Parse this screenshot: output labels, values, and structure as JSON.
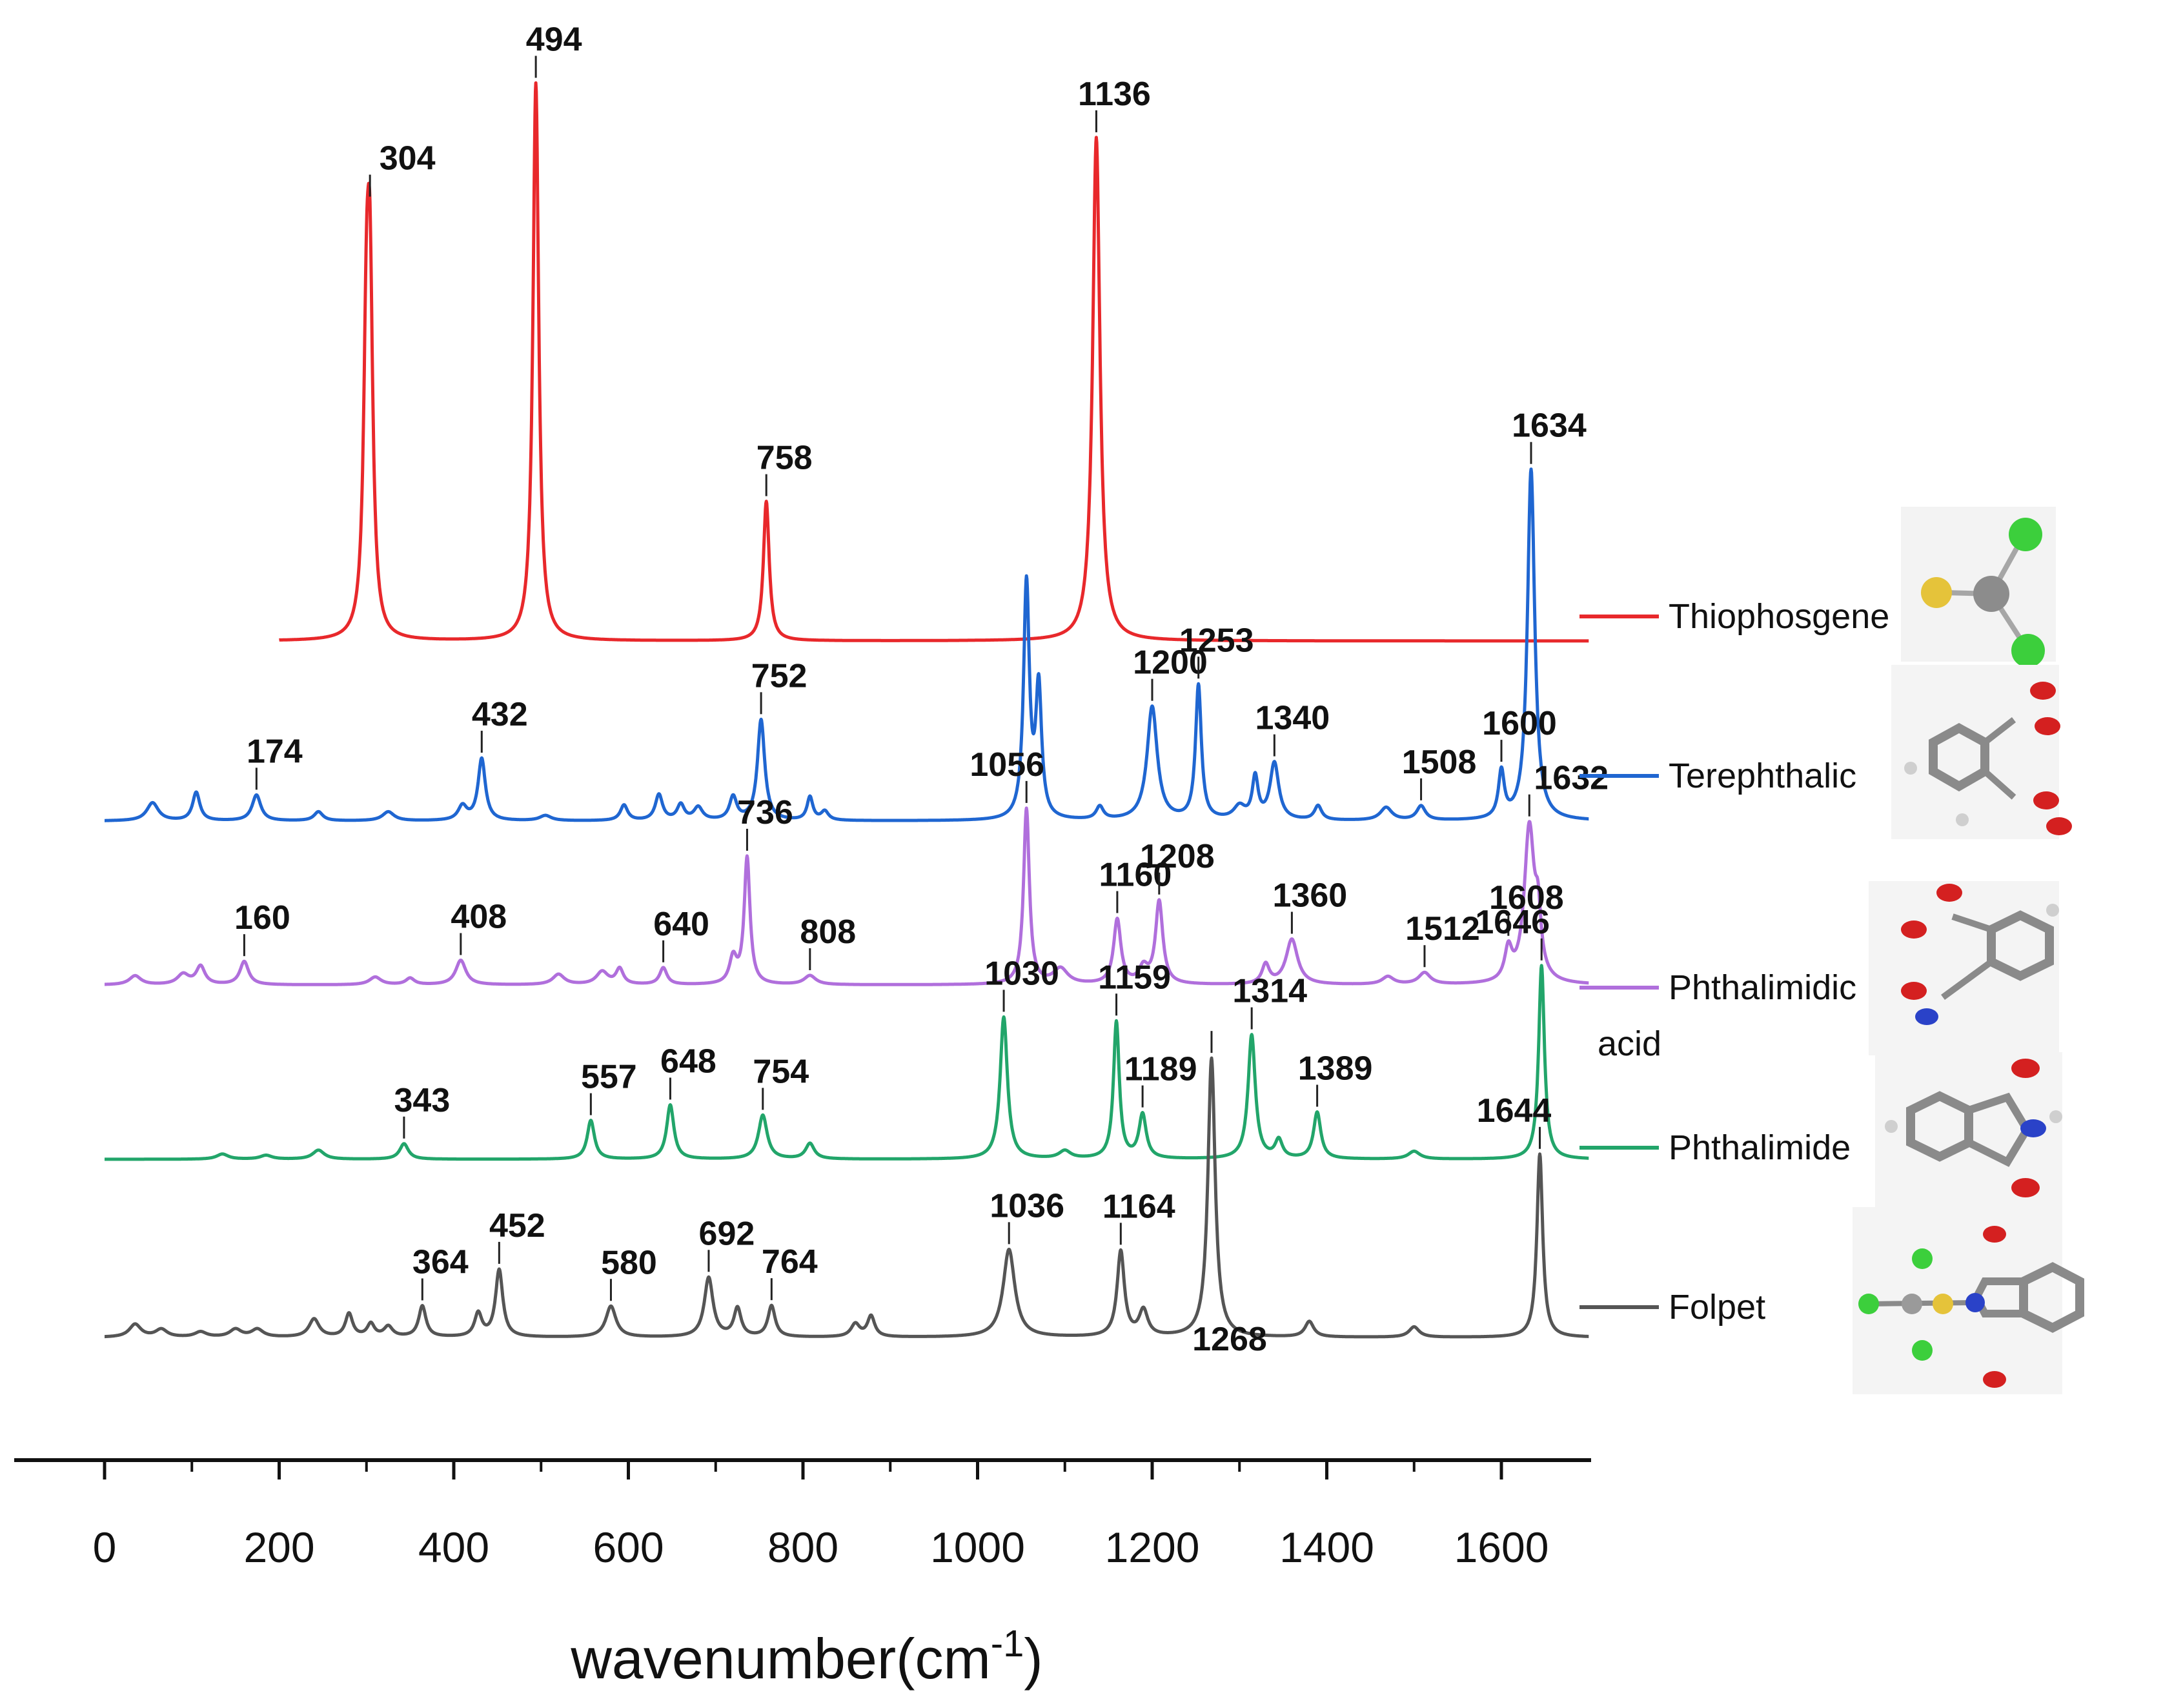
{
  "chart_data": {
    "type": "line",
    "title": "",
    "xlabel": "wavenumber(cm",
    "xlabel_sup": "-1",
    "xlabel_close": ")",
    "ylabel": "",
    "xlim": [
      -100,
      1700
    ],
    "x_ticks": [
      0,
      200,
      400,
      600,
      800,
      1000,
      1200,
      1400,
      1600
    ],
    "x_tick_labels": [
      "0",
      "200",
      "400",
      "600",
      "800",
      "1000",
      "1200",
      "1400",
      "1600"
    ],
    "stacked": true,
    "legend_position": "right",
    "series": [
      {
        "name": "Thiophosgene",
        "color": "#e8282b",
        "x_range": [
          200,
          1700
        ],
        "baseline": 0,
        "peaks": [
          [
            300,
            200,
            4
          ],
          [
            304,
            240,
            4
          ],
          [
            494,
            432,
            4
          ],
          [
            758,
            108,
            4
          ],
          [
            1136,
            390,
            5
          ]
        ],
        "labels": [
          [
            "304",
            304
          ],
          [
            "494",
            494
          ],
          [
            "758",
            758
          ],
          [
            "1136",
            1136
          ]
        ]
      },
      {
        "name": "Terephthalic",
        "color": "#1f66d1",
        "x_range": [
          0,
          1700
        ],
        "baseline": 0,
        "peaks": [
          [
            55,
            14,
            8
          ],
          [
            105,
            22,
            5
          ],
          [
            174,
            20,
            6
          ],
          [
            245,
            7,
            6
          ],
          [
            325,
            7,
            8
          ],
          [
            410,
            11,
            6
          ],
          [
            432,
            48,
            5
          ],
          [
            505,
            4,
            8
          ],
          [
            595,
            12,
            5
          ],
          [
            635,
            20,
            5
          ],
          [
            660,
            12,
            5
          ],
          [
            680,
            10,
            6
          ],
          [
            720,
            18,
            5
          ],
          [
            752,
            78,
            5
          ],
          [
            808,
            18,
            4
          ],
          [
            825,
            7,
            5
          ],
          [
            1056,
            182,
            4
          ],
          [
            1070,
            100,
            4
          ],
          [
            1140,
            10,
            5
          ],
          [
            1200,
            88,
            7
          ],
          [
            1253,
            104,
            4
          ],
          [
            1300,
            10,
            8
          ],
          [
            1318,
            32,
            4
          ],
          [
            1340,
            44,
            6
          ],
          [
            1390,
            11,
            5
          ],
          [
            1468,
            10,
            8
          ],
          [
            1508,
            11,
            6
          ],
          [
            1600,
            36,
            4
          ],
          [
            1634,
            272,
            5
          ]
        ],
        "labels": [
          [
            "174",
            174
          ],
          [
            "432",
            432
          ],
          [
            "752",
            752
          ],
          [
            "1200",
            1200
          ],
          [
            "1253",
            1253
          ],
          [
            "1340",
            1340
          ],
          [
            "1508",
            1508
          ],
          [
            "1600",
            1600
          ],
          [
            "1634",
            1634
          ]
        ]
      },
      {
        "name": "Phthalimidic",
        "name_line2": "acid",
        "color": "#b06fdc",
        "x_range": [
          0,
          1700
        ],
        "baseline": 0,
        "peaks": [
          [
            35,
            7,
            8
          ],
          [
            90,
            8,
            8
          ],
          [
            110,
            14,
            6
          ],
          [
            160,
            18,
            6
          ],
          [
            310,
            6,
            8
          ],
          [
            350,
            5,
            6
          ],
          [
            408,
            19,
            7
          ],
          [
            520,
            8,
            8
          ],
          [
            570,
            10,
            8
          ],
          [
            590,
            12,
            5
          ],
          [
            640,
            13,
            5
          ],
          [
            720,
            20,
            5
          ],
          [
            736,
            98,
            4
          ],
          [
            808,
            7,
            8
          ],
          [
            1056,
            136,
            4
          ],
          [
            1095,
            12,
            10
          ],
          [
            1160,
            50,
            5
          ],
          [
            1190,
            12,
            6
          ],
          [
            1208,
            64,
            5
          ],
          [
            1330,
            15,
            5
          ],
          [
            1360,
            35,
            8
          ],
          [
            1470,
            6,
            8
          ],
          [
            1512,
            9,
            8
          ],
          [
            1608,
            24,
            5
          ],
          [
            1632,
            120,
            7
          ],
          [
            1642,
            40,
            4
          ]
        ],
        "labels": [
          [
            "160",
            160
          ],
          [
            "408",
            408
          ],
          [
            "640",
            640
          ],
          [
            "736",
            736
          ],
          [
            "808",
            808
          ],
          [
            "1056",
            1056
          ],
          [
            "1160",
            1160
          ],
          [
            "1208",
            1208
          ],
          [
            "1360",
            1360
          ],
          [
            "1512",
            1512
          ],
          [
            "1608",
            1608
          ],
          [
            "1632",
            1632
          ]
        ]
      },
      {
        "name": "Phthalimide",
        "color": "#22a56a",
        "x_range": [
          0,
          1700
        ],
        "baseline": 0,
        "peaks": [
          [
            135,
            4,
            8
          ],
          [
            185,
            3,
            8
          ],
          [
            245,
            7,
            8
          ],
          [
            343,
            12,
            6
          ],
          [
            557,
            30,
            5
          ],
          [
            648,
            42,
            5
          ],
          [
            754,
            34,
            6
          ],
          [
            808,
            12,
            6
          ],
          [
            1030,
            110,
            5
          ],
          [
            1100,
            6,
            8
          ],
          [
            1159,
            106,
            4
          ],
          [
            1189,
            34,
            5
          ],
          [
            1314,
            96,
            5
          ],
          [
            1345,
            14,
            5
          ],
          [
            1389,
            36,
            5
          ],
          [
            1500,
            6,
            8
          ],
          [
            1646,
            150,
            4
          ]
        ],
        "labels": [
          [
            "343",
            343
          ],
          [
            "557",
            557
          ],
          [
            "648",
            648
          ],
          [
            "754",
            754
          ],
          [
            "1030",
            1030
          ],
          [
            "1159",
            1159
          ],
          [
            "1189",
            1189
          ],
          [
            "1314",
            1314
          ],
          [
            "1389",
            1389
          ],
          [
            "1646",
            1646
          ]
        ]
      },
      {
        "name": "Folpet",
        "color": "#555555",
        "x_range": [
          0,
          1700
        ],
        "baseline": 0,
        "peaks": [
          [
            35,
            10,
            8
          ],
          [
            65,
            6,
            8
          ],
          [
            110,
            4,
            8
          ],
          [
            150,
            6,
            8
          ],
          [
            175,
            6,
            8
          ],
          [
            240,
            14,
            7
          ],
          [
            280,
            18,
            5
          ],
          [
            305,
            10,
            5
          ],
          [
            325,
            8,
            6
          ],
          [
            364,
            24,
            5
          ],
          [
            428,
            18,
            5
          ],
          [
            452,
            52,
            5
          ],
          [
            580,
            24,
            7
          ],
          [
            692,
            46,
            6
          ],
          [
            725,
            22,
            5
          ],
          [
            764,
            24,
            5
          ],
          [
            860,
            10,
            6
          ],
          [
            878,
            16,
            5
          ],
          [
            1036,
            68,
            8
          ],
          [
            1164,
            66,
            5
          ],
          [
            1190,
            20,
            6
          ],
          [
            1268,
            216,
            5
          ],
          [
            1380,
            12,
            6
          ],
          [
            1500,
            8,
            7
          ],
          [
            1644,
            142,
            4
          ]
        ],
        "labels": [
          [
            "364",
            364
          ],
          [
            "452",
            452
          ],
          [
            "580",
            580
          ],
          [
            "692",
            692
          ],
          [
            "764",
            764
          ],
          [
            "1036",
            1036
          ],
          [
            "1164",
            1164
          ],
          [
            "1268",
            1268
          ],
          [
            "1644",
            1644
          ]
        ]
      }
    ]
  },
  "icons": [
    "thiophosgene-molecule-icon",
    "terephthalic-molecule-icon",
    "phthalimidic-acid-molecule-icon",
    "phthalimide-molecule-icon",
    "folpet-molecule-icon"
  ]
}
